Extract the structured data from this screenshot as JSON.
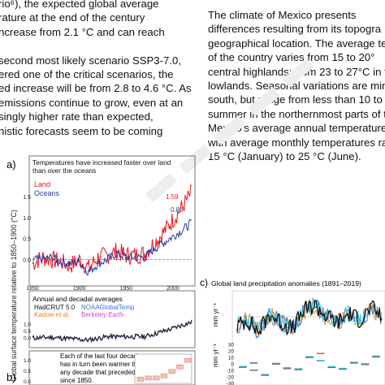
{
  "left_column": [
    "rio⁶), the expected global average",
    "rature at the end of the century",
    "ncrease from 2.1 °C and can reach",
    "",
    "second most likely scenario SSP3-7.0,",
    "ered one of the critical scenarios, the",
    "ed increase will be from 2.8 to 4.6 °C. As",
    "emissions continue to grow, even at an",
    "singly higher rate than expected,",
    "nistic forecasts seem to be coming"
  ],
  "right_column": [
    "The climate of Mexico presents",
    "differences resulting from its topogra",
    "geographical location. The average tem",
    "of the country varies from 15 to 20°",
    "central highlands; from 23 to 27°C in th",
    "lowlands. Seasonal variations are mini",
    "south, but range from less than 10 to",
    "summer in the northernmost parts of the",
    "Mexico's average annual temperature is",
    "with average monthly temperatures rang",
    "15 °C (January) to 25 °C (June)."
  ],
  "figure": {
    "panel_a": {
      "label": "a)",
      "title_line1": "Temperatures have increased faster over land",
      "title_line2": "than over the oceans",
      "legend_land": "Land",
      "legend_oceans": "Oceans",
      "land_value": "1.59",
      "ocean_value": "0.88"
    },
    "y_axis_label": "Global surface temperature relative to 1850–1900 (°C)",
    "panel_b": {
      "label": "b)",
      "title": "Annual and decadal averages",
      "legend": [
        "HadCRUT 5.0",
        "NOAAGlobalTemp",
        "Kadow et al.",
        "Berkeley Earth"
      ],
      "inset_text": [
        "Each of the last four decades",
        "has in turn been warmer than",
        "any decade that preceded it",
        "since 1850."
      ]
    },
    "panel_c": {
      "label": "c)",
      "title": "Global land precipitation anomalies (1891–2019)",
      "y_label": "mm yr⁻¹"
    },
    "colors": {
      "land": "#e8161b",
      "ocean": "#2b3a9b",
      "hadcrut": "#111111",
      "noaa": "#3a6fd0",
      "kadow": "#e08a2e",
      "berkeley": "#c44bd8",
      "cyan": "#2cc6d6"
    }
  },
  "chart_data": [
    {
      "type": "line",
      "title": "Temperatures have increased faster over land than over the oceans",
      "ylabel": "Global surface temperature relative to 1850–1900 (°C)",
      "x_ticks": [
        1850,
        1900,
        1950,
        2000
      ],
      "y_ticks": [
        0.0,
        0.5,
        1.0,
        1.5
      ],
      "xlim": [
        1850,
        2020
      ],
      "ylim": [
        -0.55,
        2.0
      ],
      "series": [
        {
          "name": "Land",
          "color": "#e8161b",
          "x": [
            1850,
            1860,
            1870,
            1880,
            1890,
            1900,
            1910,
            1920,
            1930,
            1940,
            1950,
            1960,
            1970,
            1980,
            1990,
            2000,
            2010,
            2020
          ],
          "y": [
            -0.1,
            0.05,
            0.0,
            -0.05,
            -0.15,
            0.0,
            -0.2,
            0.05,
            0.1,
            0.2,
            0.1,
            0.1,
            0.15,
            0.4,
            0.65,
            0.95,
            1.25,
            1.59
          ]
        },
        {
          "name": "Oceans",
          "color": "#2b3a9b",
          "x": [
            1850,
            1860,
            1870,
            1880,
            1890,
            1900,
            1910,
            1920,
            1930,
            1940,
            1950,
            1960,
            1970,
            1980,
            1990,
            2000,
            2010,
            2020
          ],
          "y": [
            0.0,
            0.0,
            0.05,
            -0.05,
            -0.1,
            -0.05,
            -0.3,
            -0.1,
            0.0,
            0.15,
            0.05,
            0.05,
            0.05,
            0.25,
            0.4,
            0.55,
            0.7,
            0.88
          ]
        }
      ]
    },
    {
      "type": "line",
      "title": "Annual and decadal averages",
      "ylabel": "Global surface temperature relative to 1850–1900 (°C)",
      "y_ticks": [
        0.0,
        0.5,
        1.0
      ],
      "xlim": [
        1850,
        2020
      ],
      "ylim": [
        -0.5,
        1.4
      ],
      "series": [
        {
          "name": "HadCRUT 5.0",
          "color": "#111111",
          "x": [
            1850,
            1870,
            1890,
            1910,
            1930,
            1950,
            1970,
            1990,
            2000,
            2010,
            2020
          ],
          "y": [
            -0.05,
            0.0,
            -0.1,
            -0.2,
            0.05,
            0.05,
            0.05,
            0.45,
            0.65,
            0.9,
            1.1
          ]
        }
      ],
      "decadal_steps": {
        "y": [
          0.0,
          0.05,
          0.05,
          0.15,
          0.35,
          0.55,
          0.85
        ]
      }
    },
    {
      "type": "line",
      "title": "Global land precipitation anomalies (1891–2019)",
      "ylabel": "mm yr⁻¹",
      "y_ticks": [
        30,
        20,
        10,
        0,
        -10,
        -20,
        -30
      ],
      "xlim": [
        1891,
        2019
      ],
      "series": [
        {
          "name": "",
          "color": "#111111",
          "x": [
            1891,
            1900,
            1910,
            1920,
            1930,
            1940,
            1950,
            1960,
            1970,
            1980,
            1990,
            2000,
            2010,
            2019
          ],
          "y": [
            -15,
            -5,
            -25,
            5,
            -10,
            -20,
            10,
            20,
            0,
            -10,
            5,
            -5,
            15,
            0
          ]
        }
      ]
    }
  ]
}
